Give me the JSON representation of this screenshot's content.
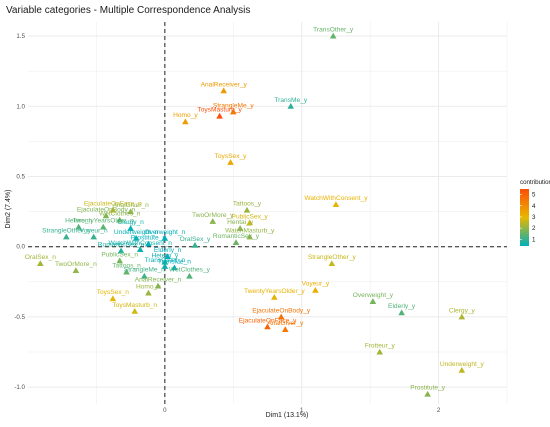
{
  "chart_data": {
    "type": "scatter",
    "title": "Variable categories - Multiple Correspondence Analysis",
    "xlabel": "Dim1 (13.1%)",
    "ylabel": "Dim2 (7.4%)",
    "xlim": [
      -1.0,
      2.5
    ],
    "ylim": [
      -1.12,
      1.6
    ],
    "x_ticks": [
      {
        "v": 0,
        "label": "0"
      },
      {
        "v": 1,
        "label": "1"
      },
      {
        "v": 2,
        "label": "2"
      }
    ],
    "y_ticks": [
      {
        "v": 1.5,
        "label": "1.5"
      },
      {
        "v": 1.0,
        "label": "1.0"
      },
      {
        "v": 0.5,
        "label": "0.5"
      },
      {
        "v": 0.0,
        "label": "0.0"
      },
      {
        "v": -0.5,
        "label": "-0.5"
      },
      {
        "v": -1.0,
        "label": "-1.0"
      }
    ],
    "grid": true,
    "reference_lines": {
      "x": 0,
      "y": 0,
      "style": "dashed"
    },
    "legend": {
      "title": "contribution",
      "position": "right",
      "breaks": [
        "5",
        "4",
        "3",
        "2",
        "1"
      ]
    },
    "colors": {
      "low": "#00AFBB",
      "mid": "#E7B800",
      "high": "#FC4E07",
      "grid": "#ebebeb",
      "text": "#1a1a1a"
    },
    "points": [
      {
        "label": "TransOther_y",
        "x": 1.23,
        "y": 1.5,
        "contrib": 1.5
      },
      {
        "label": "AnalReceiver_y",
        "x": 0.43,
        "y": 1.11,
        "contrib": 3.7
      },
      {
        "label": "StrangleMe_y",
        "x": 0.5,
        "y": 0.96,
        "contrib": 4.5
      },
      {
        "label": "TransMe_y",
        "x": 0.92,
        "y": 1.0,
        "contrib": 0.9
      },
      {
        "label": "Homo_y",
        "x": 0.15,
        "y": 0.89,
        "contrib": 3.6
      },
      {
        "label": "ToysMasturb_y",
        "x": 0.4,
        "y": 0.93,
        "contrib": 5.5
      },
      {
        "label": "ToysSex_y",
        "x": 0.48,
        "y": 0.6,
        "contrib": 3.3
      },
      {
        "label": "EjaculateOnFace_n",
        "x": -0.38,
        "y": 0.26,
        "contrib": 2.6
      },
      {
        "label": "AnalGiver_n",
        "x": -0.25,
        "y": 0.25,
        "contrib": 2.0
      },
      {
        "label": "EjaculateOnBody_n",
        "x": -0.43,
        "y": 0.22,
        "contrib": 1.8
      },
      {
        "label": "WetClothes_n",
        "x": -0.33,
        "y": 0.19,
        "contrib": 1.9
      },
      {
        "label": "Hetero_n",
        "x": -0.63,
        "y": 0.14,
        "contrib": 1.3
      },
      {
        "label": "TwentyYearsOlder_n",
        "x": -0.45,
        "y": 0.14,
        "contrib": 1.4
      },
      {
        "label": "StrangleOther_n",
        "x": -0.72,
        "y": 0.07,
        "contrib": 1.0
      },
      {
        "label": "Voyeur_n",
        "x": -0.52,
        "y": 0.07,
        "contrib": 1.0
      },
      {
        "label": "Clergy_n",
        "x": -0.25,
        "y": 0.13,
        "contrib": 0.5
      },
      {
        "label": "Underweight_n",
        "x": -0.21,
        "y": 0.06,
        "contrib": 0.5
      },
      {
        "label": "Overweight_n",
        "x": 0.0,
        "y": 0.06,
        "contrib": 0.4
      },
      {
        "label": "Prostitute_n",
        "x": -0.12,
        "y": 0.02,
        "contrib": 0.4
      },
      {
        "label": "WatchWithConsent_n",
        "x": -0.18,
        "y": -0.02,
        "contrib": 0.6
      },
      {
        "label": "RomanticSex_n",
        "x": -0.32,
        "y": -0.03,
        "contrib": 0.7
      },
      {
        "label": "PublicSex_n",
        "x": -0.33,
        "y": -0.1,
        "contrib": 1.7
      },
      {
        "label": "Hetero_y",
        "x": 0.0,
        "y": -0.11,
        "contrib": 0.6
      },
      {
        "label": "Elderly_n",
        "x": 0.02,
        "y": -0.07,
        "contrib": 0.4
      },
      {
        "label": "TransOther_n",
        "x": 0.0,
        "y": -0.14,
        "contrib": 0.5
      },
      {
        "label": "TransMe_n",
        "x": 0.07,
        "y": -0.15,
        "contrib": 0.4
      },
      {
        "label": "Tattoos_n",
        "x": -0.28,
        "y": -0.18,
        "contrib": 1.5
      },
      {
        "label": "StrangleMe_n",
        "x": -0.15,
        "y": -0.21,
        "contrib": 1.1
      },
      {
        "label": "WetClothes_y",
        "x": 0.18,
        "y": -0.21,
        "contrib": 1.3
      },
      {
        "label": "AnalReceiver_n",
        "x": -0.05,
        "y": -0.28,
        "contrib": 1.8
      },
      {
        "label": "OralSex_n",
        "x": -0.91,
        "y": -0.12,
        "contrib": 2.2
      },
      {
        "label": "TwoOrMore_n",
        "x": -0.65,
        "y": -0.17,
        "contrib": 2.0
      },
      {
        "label": "ToysSex_n",
        "x": -0.38,
        "y": -0.37,
        "contrib": 2.9
      },
      {
        "label": "Homo_n",
        "x": -0.12,
        "y": -0.33,
        "contrib": 2.1
      },
      {
        "label": "ToysMasturb_n",
        "x": -0.22,
        "y": -0.46,
        "contrib": 2.7
      },
      {
        "label": "Tattoos_y",
        "x": 0.6,
        "y": 0.26,
        "contrib": 2.1
      },
      {
        "label": "TwoOrMore_y",
        "x": 0.35,
        "y": 0.18,
        "contrib": 1.9
      },
      {
        "label": "PublicSex_y",
        "x": 0.62,
        "y": 0.17,
        "contrib": 2.7
      },
      {
        "label": "Hentai_y",
        "x": 0.55,
        "y": 0.13,
        "contrib": 1.9
      },
      {
        "label": "WatchMasturb_y",
        "x": 0.62,
        "y": 0.07,
        "contrib": 2.0
      },
      {
        "label": "OralSex_y",
        "x": 0.22,
        "y": 0.01,
        "contrib": 1.0
      },
      {
        "label": "RomanticSex_y",
        "x": 0.52,
        "y": 0.03,
        "contrib": 1.6
      },
      {
        "label": "WatchWithConsent_y",
        "x": 1.25,
        "y": 0.3,
        "contrib": 3.1
      },
      {
        "label": "StrangleOther_y",
        "x": 1.22,
        "y": -0.12,
        "contrib": 2.6
      },
      {
        "label": "Voyeur_y",
        "x": 1.1,
        "y": -0.31,
        "contrib": 3.2
      },
      {
        "label": "TwentyYearsOlder_y",
        "x": 0.8,
        "y": -0.36,
        "contrib": 3.1
      },
      {
        "label": "EjaculateOnBody_y",
        "x": 0.85,
        "y": -0.5,
        "contrib": 4.6
      },
      {
        "label": "EjaculateOnFace_y",
        "x": 0.75,
        "y": -0.57,
        "contrib": 5.0
      },
      {
        "label": "AnalGiver_y",
        "x": 0.88,
        "y": -0.59,
        "contrib": 4.5
      },
      {
        "label": "Overweight_y",
        "x": 1.52,
        "y": -0.39,
        "contrib": 1.7
      },
      {
        "label": "Elderly_y",
        "x": 1.73,
        "y": -0.47,
        "contrib": 1.3
      },
      {
        "label": "Clergy_y",
        "x": 2.17,
        "y": -0.5,
        "contrib": 2.3
      },
      {
        "label": "Frotteur_y",
        "x": 1.57,
        "y": -0.75,
        "contrib": 2.2
      },
      {
        "label": "Underweight_y",
        "x": 2.17,
        "y": -0.88,
        "contrib": 2.5
      },
      {
        "label": "Prostitute_y",
        "x": 1.92,
        "y": -1.05,
        "contrib": 1.9
      }
    ]
  }
}
